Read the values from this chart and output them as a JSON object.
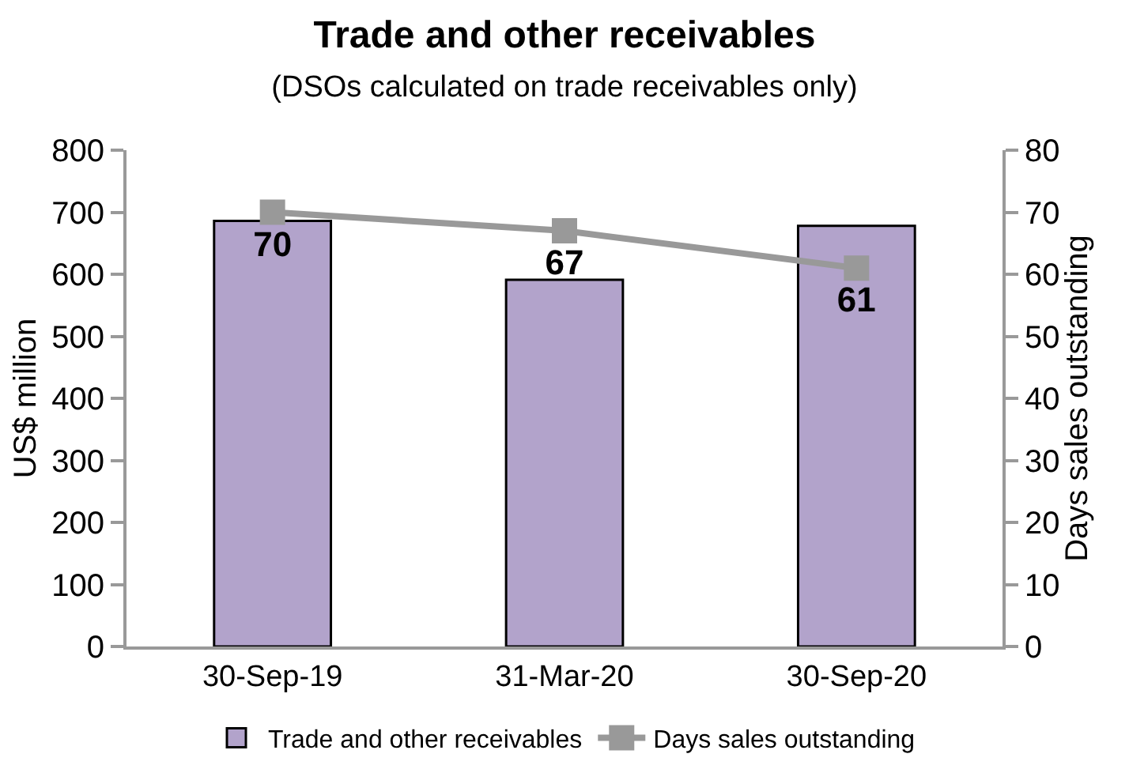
{
  "chart_data": {
    "type": "bar",
    "title": "Trade and other receivables",
    "subtitle": "(DSOs calculated on trade receivables only)",
    "ylabel": "US$ million",
    "y2label": "Days sales outstanding",
    "categories": [
      "30-Sep-19",
      "31-Mar-20",
      "30-Sep-20"
    ],
    "series": [
      {
        "name": "Trade and other receivables",
        "color": "#b2a3cb",
        "values": [
          686,
          591,
          678
        ]
      },
      {
        "name": "Days sales outstanding",
        "type": "line",
        "axis": "y2",
        "color": "#999999",
        "marker": "square",
        "values": [
          70,
          67,
          61
        ],
        "value_labels": [
          "70",
          "67",
          "61"
        ]
      }
    ],
    "ylim": [
      0,
      800
    ],
    "yticks": [
      0,
      100,
      200,
      300,
      400,
      500,
      600,
      700,
      800
    ],
    "y2lim": [
      0,
      80
    ],
    "y2ticks": [
      0,
      10,
      20,
      30,
      40,
      50,
      60,
      70,
      80
    ],
    "legend": "bottom"
  }
}
